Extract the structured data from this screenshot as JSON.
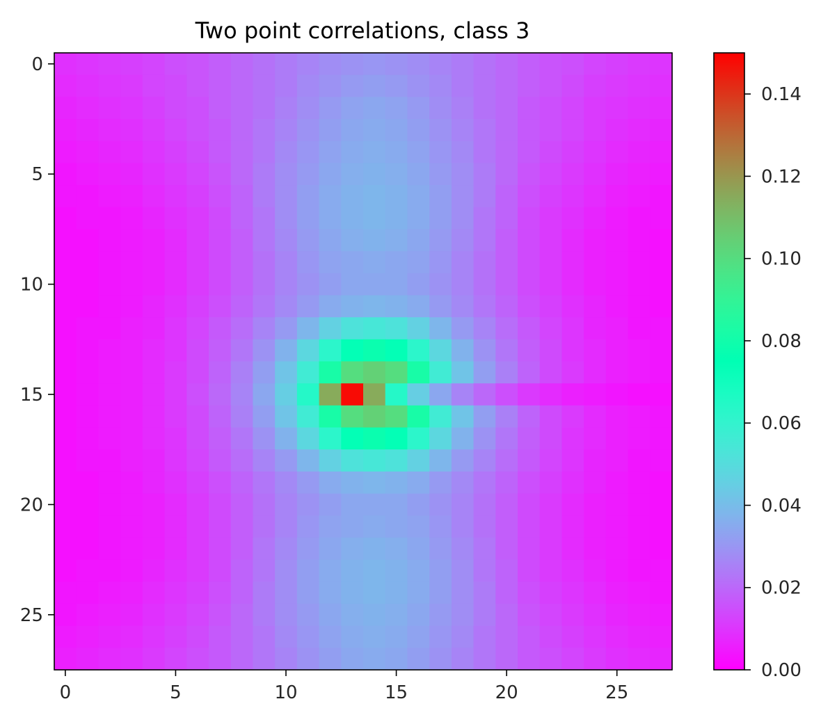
{
  "chart_data": {
    "type": "heatmap",
    "title": "Two point correlations, class 3",
    "xlabel": "",
    "ylabel": "",
    "grid": false,
    "colormap": "rainbow",
    "rows": 28,
    "cols": 28,
    "x_ticks": [
      {
        "value": 0,
        "label": "0"
      },
      {
        "value": 5,
        "label": "5"
      },
      {
        "value": 10,
        "label": "10"
      },
      {
        "value": 15,
        "label": "15"
      },
      {
        "value": 20,
        "label": "20"
      },
      {
        "value": 25,
        "label": "25"
      }
    ],
    "y_ticks": [
      {
        "value": 0,
        "label": "0"
      },
      {
        "value": 5,
        "label": "5"
      },
      {
        "value": 10,
        "label": "10"
      },
      {
        "value": 15,
        "label": "15"
      },
      {
        "value": 20,
        "label": "20"
      },
      {
        "value": 25,
        "label": "25"
      }
    ],
    "colorbar": {
      "min": 0.0,
      "max": 0.15,
      "ticks": [
        {
          "value": 0.0,
          "label": "0.00"
        },
        {
          "value": 0.02,
          "label": "0.02"
        },
        {
          "value": 0.04,
          "label": "0.04"
        },
        {
          "value": 0.06,
          "label": "0.06"
        },
        {
          "value": 0.08,
          "label": "0.08"
        },
        {
          "value": 0.1,
          "label": "0.10"
        },
        {
          "value": 0.12,
          "label": "0.12"
        },
        {
          "value": 0.14,
          "label": "0.14"
        }
      ]
    },
    "values": [
      [
        0.009,
        0.01,
        0.011,
        0.012,
        0.013,
        0.015,
        0.016,
        0.018,
        0.02,
        0.022,
        0.024,
        0.026,
        0.028,
        0.029,
        0.03,
        0.029,
        0.028,
        0.026,
        0.024,
        0.022,
        0.02,
        0.018,
        0.016,
        0.015,
        0.013,
        0.012,
        0.011,
        0.01
      ],
      [
        0.008,
        0.009,
        0.01,
        0.011,
        0.013,
        0.014,
        0.016,
        0.018,
        0.02,
        0.022,
        0.024,
        0.027,
        0.029,
        0.031,
        0.032,
        0.031,
        0.029,
        0.027,
        0.024,
        0.022,
        0.02,
        0.018,
        0.016,
        0.014,
        0.012,
        0.011,
        0.01,
        0.009
      ],
      [
        0.007,
        0.008,
        0.009,
        0.01,
        0.012,
        0.014,
        0.015,
        0.018,
        0.02,
        0.022,
        0.025,
        0.028,
        0.031,
        0.033,
        0.034,
        0.033,
        0.031,
        0.028,
        0.025,
        0.022,
        0.02,
        0.017,
        0.015,
        0.013,
        0.011,
        0.01,
        0.009,
        0.008
      ],
      [
        0.006,
        0.007,
        0.008,
        0.009,
        0.011,
        0.013,
        0.015,
        0.017,
        0.02,
        0.023,
        0.026,
        0.029,
        0.032,
        0.034,
        0.035,
        0.034,
        0.032,
        0.029,
        0.026,
        0.023,
        0.02,
        0.017,
        0.015,
        0.013,
        0.011,
        0.009,
        0.008,
        0.007
      ],
      [
        0.005,
        0.006,
        0.007,
        0.008,
        0.01,
        0.012,
        0.014,
        0.017,
        0.02,
        0.023,
        0.027,
        0.03,
        0.033,
        0.035,
        0.036,
        0.035,
        0.033,
        0.03,
        0.027,
        0.023,
        0.02,
        0.017,
        0.014,
        0.012,
        0.01,
        0.008,
        0.007,
        0.006
      ],
      [
        0.004,
        0.005,
        0.006,
        0.007,
        0.009,
        0.011,
        0.013,
        0.016,
        0.02,
        0.024,
        0.028,
        0.031,
        0.034,
        0.036,
        0.037,
        0.036,
        0.034,
        0.031,
        0.028,
        0.024,
        0.02,
        0.016,
        0.013,
        0.011,
        0.009,
        0.007,
        0.006,
        0.005
      ],
      [
        0.004,
        0.004,
        0.005,
        0.006,
        0.008,
        0.01,
        0.012,
        0.015,
        0.019,
        0.024,
        0.028,
        0.032,
        0.035,
        0.037,
        0.038,
        0.037,
        0.035,
        0.032,
        0.028,
        0.024,
        0.019,
        0.015,
        0.012,
        0.01,
        0.008,
        0.006,
        0.005,
        0.004
      ],
      [
        0.003,
        0.004,
        0.004,
        0.005,
        0.007,
        0.009,
        0.011,
        0.014,
        0.019,
        0.023,
        0.028,
        0.032,
        0.035,
        0.037,
        0.038,
        0.037,
        0.035,
        0.032,
        0.028,
        0.023,
        0.019,
        0.014,
        0.011,
        0.009,
        0.007,
        0.005,
        0.004,
        0.004
      ],
      [
        0.003,
        0.003,
        0.004,
        0.005,
        0.006,
        0.008,
        0.011,
        0.014,
        0.018,
        0.023,
        0.027,
        0.031,
        0.034,
        0.036,
        0.037,
        0.036,
        0.034,
        0.031,
        0.027,
        0.023,
        0.018,
        0.014,
        0.011,
        0.008,
        0.006,
        0.005,
        0.004,
        0.003
      ],
      [
        0.003,
        0.003,
        0.004,
        0.005,
        0.006,
        0.008,
        0.011,
        0.014,
        0.018,
        0.022,
        0.026,
        0.03,
        0.033,
        0.034,
        0.035,
        0.034,
        0.033,
        0.03,
        0.026,
        0.022,
        0.018,
        0.014,
        0.011,
        0.008,
        0.006,
        0.005,
        0.004,
        0.003
      ],
      [
        0.003,
        0.003,
        0.004,
        0.005,
        0.006,
        0.008,
        0.011,
        0.014,
        0.018,
        0.022,
        0.026,
        0.029,
        0.032,
        0.034,
        0.034,
        0.034,
        0.032,
        0.029,
        0.026,
        0.022,
        0.018,
        0.014,
        0.011,
        0.008,
        0.006,
        0.005,
        0.004,
        0.003
      ],
      [
        0.003,
        0.003,
        0.004,
        0.005,
        0.007,
        0.009,
        0.012,
        0.015,
        0.019,
        0.023,
        0.027,
        0.031,
        0.035,
        0.037,
        0.038,
        0.037,
        0.035,
        0.031,
        0.027,
        0.023,
        0.019,
        0.015,
        0.012,
        0.009,
        0.007,
        0.005,
        0.004,
        0.003
      ],
      [
        0.003,
        0.004,
        0.004,
        0.006,
        0.007,
        0.01,
        0.013,
        0.017,
        0.021,
        0.026,
        0.031,
        0.038,
        0.046,
        0.052,
        0.054,
        0.052,
        0.046,
        0.038,
        0.031,
        0.026,
        0.021,
        0.017,
        0.013,
        0.01,
        0.007,
        0.006,
        0.004,
        0.004
      ],
      [
        0.003,
        0.004,
        0.005,
        0.006,
        0.008,
        0.01,
        0.014,
        0.018,
        0.023,
        0.029,
        0.037,
        0.048,
        0.062,
        0.074,
        0.078,
        0.074,
        0.062,
        0.048,
        0.037,
        0.029,
        0.023,
        0.018,
        0.014,
        0.01,
        0.008,
        0.006,
        0.005,
        0.004
      ],
      [
        0.003,
        0.004,
        0.005,
        0.006,
        0.008,
        0.011,
        0.014,
        0.019,
        0.025,
        0.032,
        0.042,
        0.056,
        0.082,
        0.1,
        0.104,
        0.1,
        0.082,
        0.056,
        0.042,
        0.032,
        0.025,
        0.019,
        0.014,
        0.011,
        0.008,
        0.006,
        0.005,
        0.004
      ],
      [
        0.003,
        0.004,
        0.005,
        0.006,
        0.008,
        0.011,
        0.015,
        0.02,
        0.026,
        0.034,
        0.045,
        0.064,
        0.115,
        0.148,
        0.115,
        0.064,
        0.045,
        0.034,
        0.026,
        0.02,
        0.015,
        0.011,
        0.008,
        0.006,
        0.005,
        0.004,
        0.003,
        0.003
      ],
      [
        0.003,
        0.004,
        0.005,
        0.006,
        0.008,
        0.011,
        0.014,
        0.019,
        0.025,
        0.032,
        0.042,
        0.056,
        0.082,
        0.1,
        0.104,
        0.1,
        0.082,
        0.056,
        0.042,
        0.032,
        0.025,
        0.019,
        0.014,
        0.011,
        0.008,
        0.006,
        0.005,
        0.004
      ],
      [
        0.003,
        0.004,
        0.005,
        0.006,
        0.008,
        0.01,
        0.014,
        0.018,
        0.023,
        0.029,
        0.037,
        0.048,
        0.062,
        0.074,
        0.078,
        0.074,
        0.062,
        0.048,
        0.037,
        0.029,
        0.023,
        0.018,
        0.014,
        0.01,
        0.008,
        0.006,
        0.005,
        0.004
      ],
      [
        0.003,
        0.004,
        0.004,
        0.006,
        0.007,
        0.01,
        0.013,
        0.017,
        0.021,
        0.026,
        0.031,
        0.038,
        0.046,
        0.052,
        0.054,
        0.052,
        0.046,
        0.038,
        0.031,
        0.026,
        0.021,
        0.017,
        0.013,
        0.01,
        0.007,
        0.006,
        0.004,
        0.004
      ],
      [
        0.003,
        0.003,
        0.004,
        0.005,
        0.007,
        0.009,
        0.012,
        0.015,
        0.019,
        0.023,
        0.027,
        0.031,
        0.035,
        0.037,
        0.038,
        0.037,
        0.035,
        0.031,
        0.027,
        0.023,
        0.019,
        0.015,
        0.012,
        0.009,
        0.007,
        0.005,
        0.004,
        0.003
      ],
      [
        0.003,
        0.003,
        0.004,
        0.005,
        0.006,
        0.008,
        0.011,
        0.014,
        0.018,
        0.022,
        0.026,
        0.029,
        0.032,
        0.034,
        0.034,
        0.034,
        0.032,
        0.029,
        0.026,
        0.022,
        0.018,
        0.014,
        0.011,
        0.008,
        0.006,
        0.005,
        0.004,
        0.003
      ],
      [
        0.003,
        0.003,
        0.004,
        0.005,
        0.006,
        0.008,
        0.011,
        0.014,
        0.018,
        0.022,
        0.026,
        0.03,
        0.033,
        0.034,
        0.035,
        0.034,
        0.033,
        0.03,
        0.026,
        0.022,
        0.018,
        0.014,
        0.011,
        0.008,
        0.006,
        0.005,
        0.004,
        0.003
      ],
      [
        0.003,
        0.003,
        0.004,
        0.005,
        0.006,
        0.008,
        0.011,
        0.014,
        0.018,
        0.023,
        0.027,
        0.031,
        0.034,
        0.036,
        0.037,
        0.036,
        0.034,
        0.031,
        0.027,
        0.023,
        0.018,
        0.014,
        0.011,
        0.008,
        0.006,
        0.005,
        0.004,
        0.003
      ],
      [
        0.003,
        0.004,
        0.004,
        0.005,
        0.007,
        0.009,
        0.011,
        0.014,
        0.019,
        0.023,
        0.028,
        0.032,
        0.035,
        0.037,
        0.038,
        0.037,
        0.035,
        0.032,
        0.028,
        0.023,
        0.019,
        0.014,
        0.011,
        0.009,
        0.007,
        0.005,
        0.004,
        0.004
      ],
      [
        0.004,
        0.004,
        0.005,
        0.006,
        0.008,
        0.01,
        0.012,
        0.015,
        0.019,
        0.024,
        0.028,
        0.032,
        0.035,
        0.037,
        0.038,
        0.037,
        0.035,
        0.032,
        0.028,
        0.024,
        0.019,
        0.015,
        0.012,
        0.01,
        0.008,
        0.006,
        0.005,
        0.004
      ],
      [
        0.004,
        0.005,
        0.006,
        0.007,
        0.009,
        0.011,
        0.013,
        0.016,
        0.02,
        0.024,
        0.028,
        0.031,
        0.034,
        0.036,
        0.037,
        0.036,
        0.034,
        0.031,
        0.028,
        0.024,
        0.02,
        0.016,
        0.013,
        0.011,
        0.009,
        0.007,
        0.006,
        0.005
      ],
      [
        0.005,
        0.006,
        0.007,
        0.008,
        0.01,
        0.012,
        0.014,
        0.017,
        0.02,
        0.023,
        0.027,
        0.03,
        0.033,
        0.035,
        0.036,
        0.035,
        0.033,
        0.03,
        0.027,
        0.023,
        0.02,
        0.017,
        0.014,
        0.012,
        0.01,
        0.008,
        0.007,
        0.006
      ],
      [
        0.006,
        0.007,
        0.008,
        0.009,
        0.011,
        0.013,
        0.015,
        0.017,
        0.02,
        0.023,
        0.026,
        0.029,
        0.032,
        0.034,
        0.035,
        0.034,
        0.032,
        0.029,
        0.026,
        0.023,
        0.02,
        0.017,
        0.015,
        0.013,
        0.011,
        0.009,
        0.008,
        0.007
      ]
    ]
  }
}
